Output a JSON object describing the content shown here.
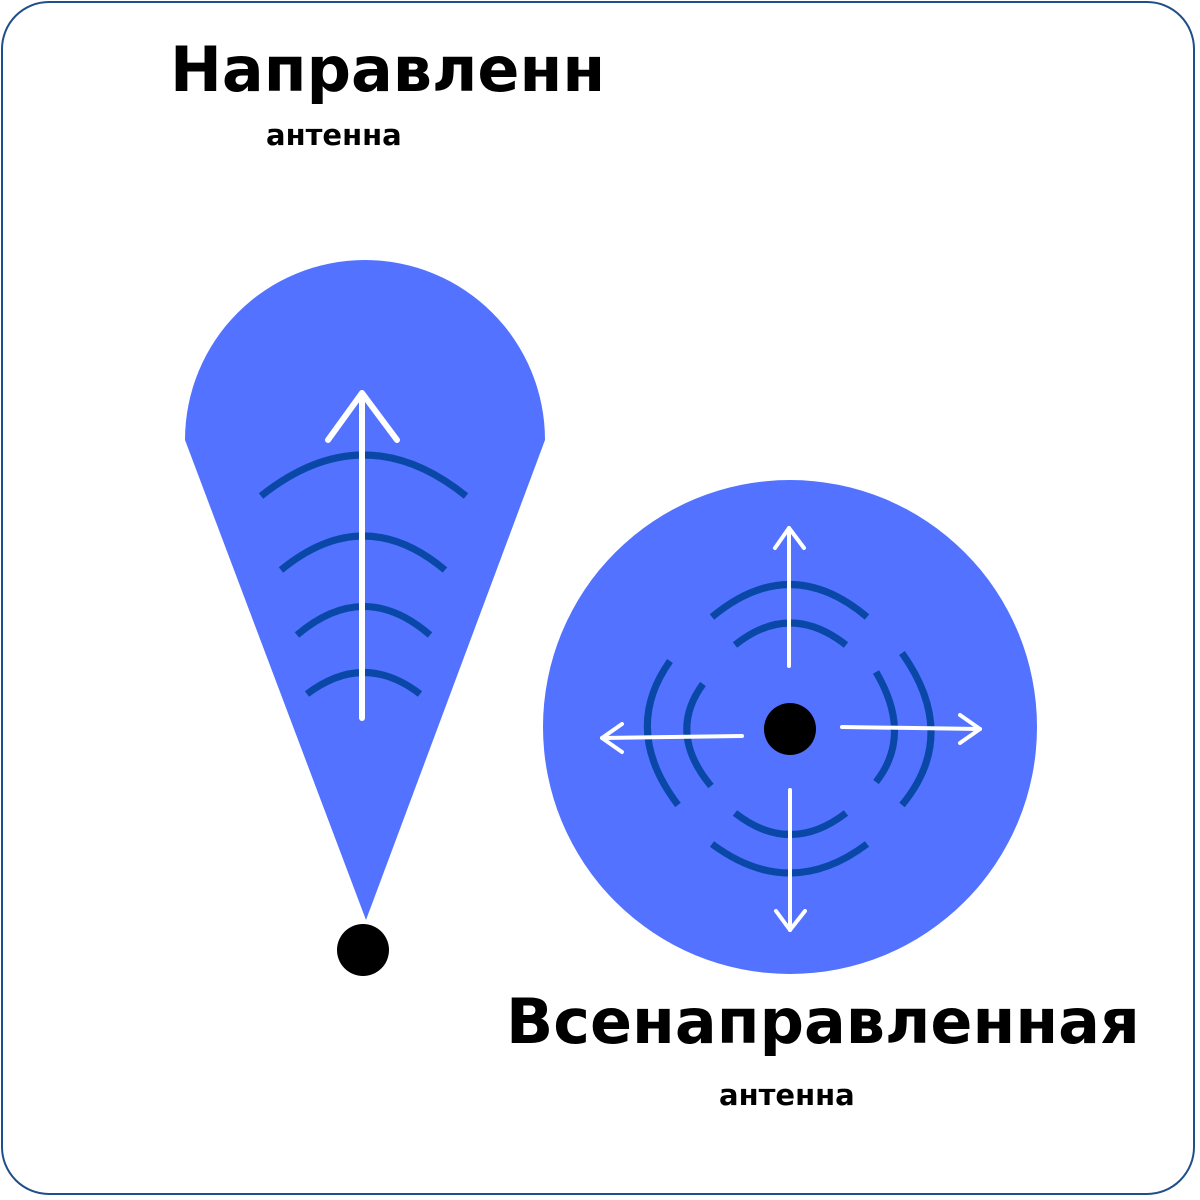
{
  "directional": {
    "title": "Направленн",
    "subtitle": "антенна",
    "icon": "directional-antenna-pattern"
  },
  "omnidirectional": {
    "title": "Всенаправленная",
    "subtitle": "антенна",
    "icon": "omnidirectional-antenna-pattern"
  },
  "colors": {
    "frame_border": "#1f4e8a",
    "coverage_fill": "#5272ff",
    "wave_stroke": "#0a48a8",
    "arrow_stroke": "#ffffff",
    "antenna_point": "#000000"
  }
}
